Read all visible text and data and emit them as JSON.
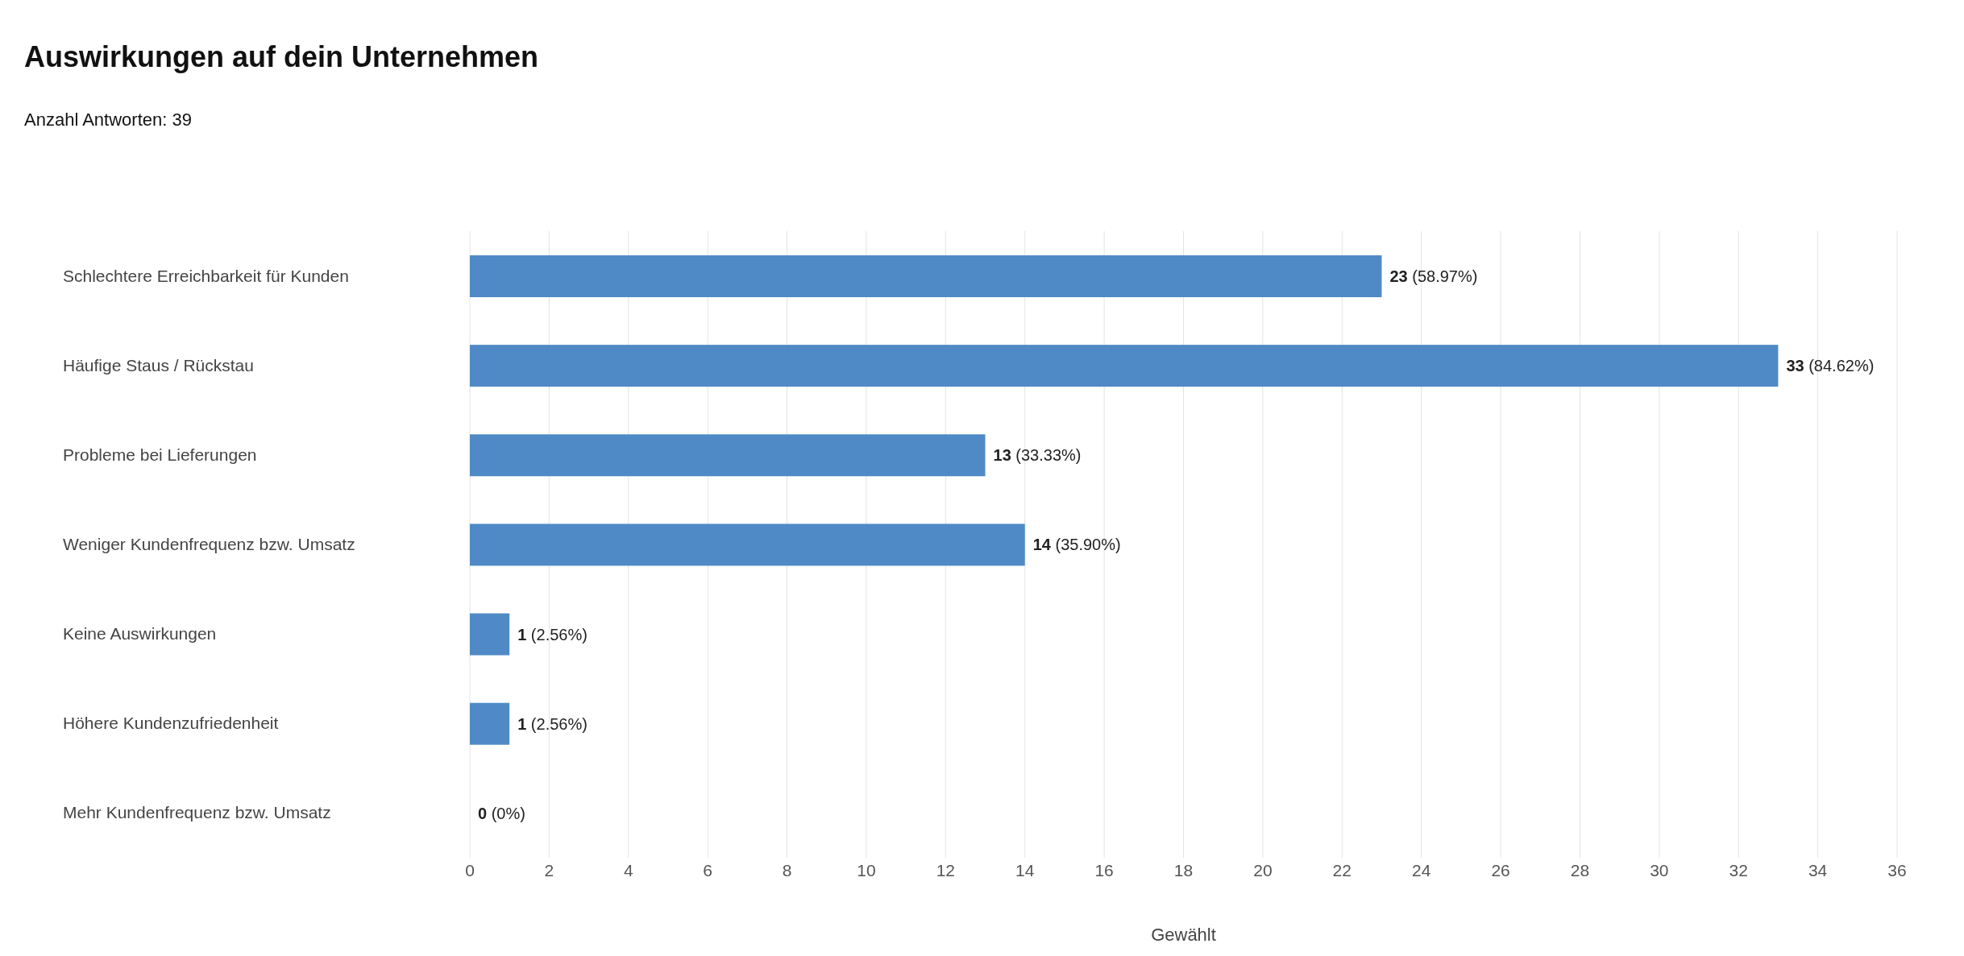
{
  "chart_data": {
    "type": "bar",
    "orientation": "horizontal",
    "title": "Auswirkungen auf dein Unternehmen",
    "subtitle": "Anzahl Antworten: 39",
    "xlabel": "Gewählt",
    "categories": [
      "Schlechtere Erreichbarkeit für Kunden",
      "Häufige Staus / Rückstau",
      "Probleme bei Lieferungen",
      "Weniger Kundenfrequenz bzw. Umsatz",
      "Keine Auswirkungen",
      "Höhere Kundenzufriedenheit",
      "Mehr Kundenfrequenz bzw. Umsatz"
    ],
    "values": [
      23,
      33,
      13,
      14,
      1,
      1,
      0
    ],
    "value_labels": [
      "23 (58.97%)",
      "33 (84.62%)",
      "13 (33.33%)",
      "14 (35.90%)",
      "1 (2.56%)",
      "1 (2.56%)",
      "0 (0%)"
    ],
    "color": "#4f8ac6",
    "xlim": [
      0,
      36
    ],
    "xticks": [
      0,
      2,
      4,
      6,
      8,
      10,
      12,
      14,
      16,
      18,
      20,
      22,
      24,
      26,
      28,
      30,
      32,
      34,
      36
    ],
    "grid": "x"
  }
}
